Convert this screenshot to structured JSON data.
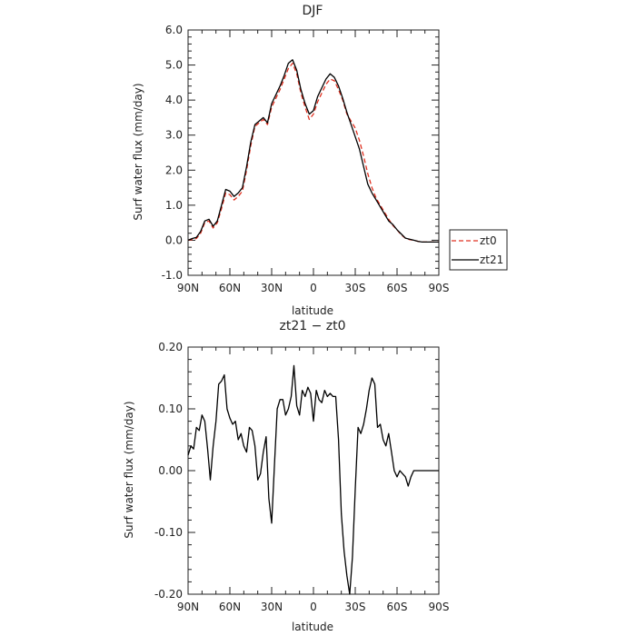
{
  "chart_data": [
    {
      "type": "line",
      "title": "DJF",
      "xlabel": "latitude",
      "ylabel": "Surf water flux (mm/day)",
      "xlim": [
        90,
        -90
      ],
      "ylim": [
        -1.0,
        6.0
      ],
      "x_ticks": [
        90,
        60,
        30,
        0,
        -30,
        -60,
        -90
      ],
      "x_tick_labels": [
        "90N",
        "60N",
        "30N",
        "0",
        "30S",
        "60S",
        "90S"
      ],
      "y_ticks": [
        -1,
        0,
        1,
        2,
        3,
        4,
        5,
        6
      ],
      "y_tick_labels": [
        "-1.0",
        "0.0",
        "1.0",
        "2.0",
        "3.0",
        "4.0",
        "5.0",
        "6.0"
      ],
      "legend_position": "outside-right",
      "series": [
        {
          "name": "zt0",
          "color": "#e03020",
          "style": "dashed",
          "x": [
            90,
            87,
            84,
            81,
            78,
            75,
            72,
            69,
            66,
            63,
            60,
            57,
            54,
            51,
            48,
            45,
            42,
            39,
            36,
            33,
            30,
            27,
            24,
            21,
            18,
            15,
            12,
            9,
            6,
            3,
            0,
            -3,
            -6,
            -9,
            -12,
            -15,
            -18,
            -21,
            -24,
            -27,
            -30,
            -33,
            -36,
            -39,
            -42,
            -45,
            -48,
            -51,
            -54,
            -57,
            -60,
            -63,
            -66,
            -69,
            -72,
            -75,
            -78,
            -81,
            -84,
            -87,
            -90
          ],
          "y": [
            0.0,
            0.02,
            0.05,
            0.2,
            0.5,
            0.55,
            0.35,
            0.5,
            0.9,
            1.35,
            1.3,
            1.15,
            1.25,
            1.4,
            2.0,
            2.7,
            3.25,
            3.35,
            3.45,
            3.3,
            3.8,
            4.05,
            4.3,
            4.6,
            4.9,
            5.05,
            4.75,
            4.2,
            3.8,
            3.45,
            3.6,
            3.95,
            4.2,
            4.45,
            4.6,
            4.55,
            4.3,
            4.0,
            3.6,
            3.4,
            3.2,
            2.85,
            2.4,
            1.9,
            1.5,
            1.2,
            1.0,
            0.8,
            0.6,
            0.42,
            0.3,
            0.15,
            0.06,
            0.02,
            0.0,
            -0.03,
            -0.05,
            -0.05,
            -0.05,
            -0.05,
            -0.05
          ]
        },
        {
          "name": "zt21",
          "color": "#000000",
          "style": "solid",
          "x": [
            90,
            87,
            84,
            81,
            78,
            75,
            72,
            69,
            66,
            63,
            60,
            57,
            54,
            51,
            48,
            45,
            42,
            39,
            36,
            33,
            30,
            27,
            24,
            21,
            18,
            15,
            12,
            9,
            6,
            3,
            0,
            -3,
            -6,
            -9,
            -12,
            -15,
            -18,
            -21,
            -24,
            -27,
            -30,
            -33,
            -36,
            -39,
            -42,
            -45,
            -48,
            -51,
            -54,
            -57,
            -60,
            -63,
            -66,
            -69,
            -72,
            -75,
            -78,
            -81,
            -84,
            -87,
            -90
          ],
          "y": [
            0.0,
            0.05,
            0.08,
            0.25,
            0.55,
            0.6,
            0.4,
            0.55,
            1.0,
            1.45,
            1.4,
            1.25,
            1.35,
            1.5,
            2.1,
            2.8,
            3.3,
            3.4,
            3.5,
            3.35,
            3.9,
            4.15,
            4.4,
            4.7,
            5.05,
            5.15,
            4.85,
            4.3,
            3.9,
            3.6,
            3.7,
            4.1,
            4.35,
            4.6,
            4.75,
            4.65,
            4.4,
            4.05,
            3.65,
            3.3,
            2.95,
            2.6,
            2.1,
            1.6,
            1.35,
            1.15,
            0.95,
            0.75,
            0.55,
            0.45,
            0.3,
            0.18,
            0.06,
            0.03,
            0.0,
            -0.03,
            -0.05,
            -0.05,
            -0.05,
            -0.05,
            -0.05
          ]
        }
      ]
    },
    {
      "type": "line",
      "title": "zt21 − zt0",
      "xlabel": "latitude",
      "ylabel": "Surf water flux (mm/day)",
      "xlim": [
        90,
        -90
      ],
      "ylim": [
        -0.2,
        0.2
      ],
      "x_ticks": [
        90,
        60,
        30,
        0,
        -30,
        -60,
        -90
      ],
      "x_tick_labels": [
        "90N",
        "60N",
        "30N",
        "0",
        "30S",
        "60S",
        "90S"
      ],
      "y_ticks": [
        -0.2,
        -0.1,
        0.0,
        0.1,
        0.2
      ],
      "y_tick_labels": [
        "-0.20",
        "-0.10",
        "0.00",
        "0.10",
        "0.20"
      ],
      "series": [
        {
          "color": "#000000",
          "style": "solid",
          "x": [
            90,
            88,
            86,
            84,
            82,
            80,
            78,
            76,
            74,
            72,
            70,
            68,
            66,
            64,
            62,
            60,
            58,
            56,
            54,
            52,
            50,
            48,
            46,
            44,
            42,
            40,
            38,
            36,
            34,
            32,
            30,
            28,
            26,
            24,
            22,
            20,
            18,
            16,
            14,
            12,
            10,
            8,
            6,
            4,
            2,
            0,
            -2,
            -4,
            -6,
            -8,
            -10,
            -12,
            -14,
            -16,
            -18,
            -20,
            -22,
            -24,
            -26,
            -28,
            -30,
            -32,
            -34,
            -36,
            -38,
            -40,
            -42,
            -44,
            -46,
            -48,
            -50,
            -52,
            -54,
            -56,
            -58,
            -60,
            -62,
            -64,
            -66,
            -68,
            -70,
            -72,
            -74,
            -76,
            -78,
            -80,
            -82,
            -84,
            -86,
            -88,
            -90
          ],
          "y": [
            0.025,
            0.04,
            0.035,
            0.07,
            0.065,
            0.09,
            0.08,
            0.035,
            -0.015,
            0.04,
            0.08,
            0.14,
            0.145,
            0.155,
            0.1,
            0.085,
            0.075,
            0.08,
            0.05,
            0.06,
            0.04,
            0.03,
            0.07,
            0.065,
            0.04,
            -0.015,
            -0.005,
            0.03,
            0.055,
            -0.045,
            -0.085,
            0.01,
            0.1,
            0.115,
            0.115,
            0.09,
            0.1,
            0.12,
            0.17,
            0.105,
            0.09,
            0.13,
            0.12,
            0.135,
            0.125,
            0.08,
            0.13,
            0.115,
            0.11,
            0.13,
            0.12,
            0.125,
            0.12,
            0.12,
            0.05,
            -0.07,
            -0.13,
            -0.17,
            -0.2,
            -0.14,
            -0.03,
            0.07,
            0.06,
            0.075,
            0.1,
            0.13,
            0.15,
            0.14,
            0.07,
            0.075,
            0.05,
            0.04,
            0.06,
            0.03,
            0.0,
            -0.01,
            0.0,
            -0.005,
            -0.01,
            -0.025,
            -0.01,
            0.0,
            0.0,
            0.0,
            0.0,
            0.0,
            0.0,
            0.0,
            0.0,
            0.0,
            0.0
          ]
        }
      ]
    }
  ]
}
